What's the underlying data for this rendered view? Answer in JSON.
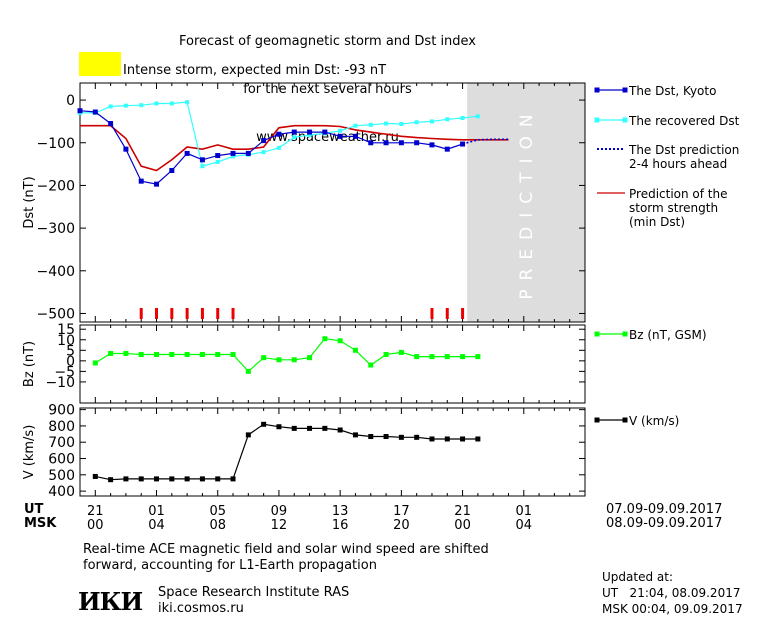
{
  "title_lines": [
    "Forecast of geomagnetic storm and Dst index",
    "for the next several hours",
    "www.spaceweather.ru"
  ],
  "status": {
    "color": "#ffff00",
    "text": "Intense storm, expected min Dst: -93 nT"
  },
  "colors": {
    "dst_kyoto": "#0000cc",
    "dst_recovered": "#33ffff",
    "prediction": "#cc0000",
    "bz": "#00ff00",
    "speed": "#000000",
    "storm_marks": "#ee0000",
    "prediction_zone": "#dddddd"
  },
  "prediction_label": "PREDICTION",
  "x_axis": {
    "ut_label": "UT",
    "msk_label": "MSK",
    "ut_ticks": [
      "21",
      "01",
      "05",
      "09",
      "13",
      "17",
      "21",
      "01"
    ],
    "msk_ticks": [
      "00",
      "04",
      "08",
      "12",
      "16",
      "20",
      "00",
      "04"
    ],
    "ut_range": "07.09-09.09.2017",
    "msk_range": "08.09-09.09.2017"
  },
  "footer": {
    "note_lines": [
      "Real-time ACE magnetic field and solar wind speed are shifted",
      "forward, accounting for L1-Earth propagation"
    ],
    "logo_text": "ИКИ",
    "institute": "Space Research Institute RAS",
    "site": "iki.cosmos.ru",
    "updated_label": "Updated at:",
    "updated_ut": "UT   21:04, 08.09.2017",
    "updated_msk": "MSK 00:04, 09.09.2017"
  },
  "chart_data": [
    {
      "type": "line",
      "x_unit": "hours after 21 UT 07.09",
      "ylabel": "Dst (nT)",
      "ylim": [
        -520,
        40
      ],
      "yticks": [
        0,
        -100,
        -200,
        -300,
        -400,
        -500
      ],
      "legend_position": "right",
      "series": [
        {
          "name": "The Dst, Kyoto",
          "x": [
            -1,
            0,
            1,
            2,
            3,
            4,
            5,
            6,
            7,
            8,
            9,
            10,
            11,
            12,
            13,
            14,
            15,
            16,
            17,
            18,
            19,
            20,
            21,
            22,
            23,
            24
          ],
          "y": [
            -25,
            -28,
            -55,
            -115,
            -190,
            -197,
            -165,
            -125,
            -140,
            -130,
            -125,
            -125,
            -95,
            -80,
            -75,
            -75,
            -75,
            -85,
            -85,
            -100,
            -100,
            -100,
            -100,
            -105,
            -115,
            -103
          ]
        },
        {
          "name": "The recovered Dst",
          "x": [
            -1,
            0,
            1,
            2,
            3,
            4,
            5,
            6,
            7,
            8,
            9,
            10,
            11,
            12,
            13,
            14,
            15,
            16,
            17,
            18,
            19,
            20,
            21,
            22,
            23,
            24,
            25
          ],
          "y": [
            -30,
            -30,
            -15,
            -13,
            -12,
            -8,
            -8,
            -5,
            -155,
            -145,
            -132,
            -128,
            -122,
            -112,
            -87,
            -82,
            -78,
            -72,
            -60,
            -58,
            -55,
            -56,
            -52,
            -50,
            -45,
            -42,
            -38
          ]
        },
        {
          "name": "The Dst prediction\n2-4 hours ahead",
          "x": [
            24,
            25,
            26,
            27
          ],
          "y": [
            -103,
            -93,
            -92,
            -92
          ]
        },
        {
          "name": "Prediction of the\nstorm strength\n(min Dst)",
          "x": [
            -1,
            0,
            1,
            2,
            3,
            4,
            5,
            6,
            7,
            8,
            9,
            10,
            11,
            12,
            13,
            14,
            15,
            16,
            17,
            18,
            19,
            20,
            21,
            22,
            23,
            24,
            25,
            26,
            27
          ],
          "y": [
            -60,
            -60,
            -60,
            -90,
            -155,
            -165,
            -140,
            -110,
            -115,
            -105,
            -115,
            -115,
            -110,
            -65,
            -60,
            -60,
            -60,
            -62,
            -70,
            -75,
            -80,
            -85,
            -88,
            -90,
            -92,
            -93,
            -93,
            -93,
            -93
          ]
        }
      ],
      "storm_marks_x": [
        3,
        4,
        5,
        6,
        7,
        8,
        9,
        22,
        23,
        24
      ]
    },
    {
      "type": "line",
      "ylabel": "Bz (nT)",
      "ylim": [
        -20,
        17
      ],
      "yticks": [
        15,
        10,
        5,
        0,
        -5,
        -10
      ],
      "series": [
        {
          "name": "Bz (nT, GSM)",
          "x": [
            0,
            1,
            2,
            3,
            4,
            5,
            6,
            7,
            8,
            9,
            10,
            11,
            12,
            13,
            14,
            15,
            16,
            17,
            18,
            19,
            20,
            21,
            22,
            23,
            24,
            25
          ],
          "y": [
            -1,
            3.5,
            3.5,
            3,
            3,
            3,
            3,
            3,
            3,
            3,
            -5,
            1.5,
            0.5,
            0.5,
            1.5,
            10.5,
            9.5,
            5,
            -2,
            3,
            4,
            2,
            2,
            2,
            2,
            2
          ]
        }
      ]
    },
    {
      "type": "line",
      "ylabel": "V (km/s)",
      "ylim": [
        370,
        910
      ],
      "yticks": [
        900,
        800,
        700,
        600,
        500,
        400
      ],
      "series": [
        {
          "name": "V (km/s)",
          "x": [
            0,
            1,
            2,
            3,
            4,
            5,
            6,
            7,
            8,
            9,
            10,
            11,
            12,
            13,
            14,
            15,
            16,
            17,
            18,
            19,
            20,
            21,
            22,
            23,
            24,
            25
          ],
          "y": [
            490,
            470,
            475,
            475,
            475,
            475,
            475,
            475,
            475,
            475,
            745,
            810,
            795,
            785,
            785,
            785,
            775,
            745,
            735,
            735,
            730,
            730,
            720,
            720,
            720,
            720
          ]
        }
      ]
    }
  ]
}
